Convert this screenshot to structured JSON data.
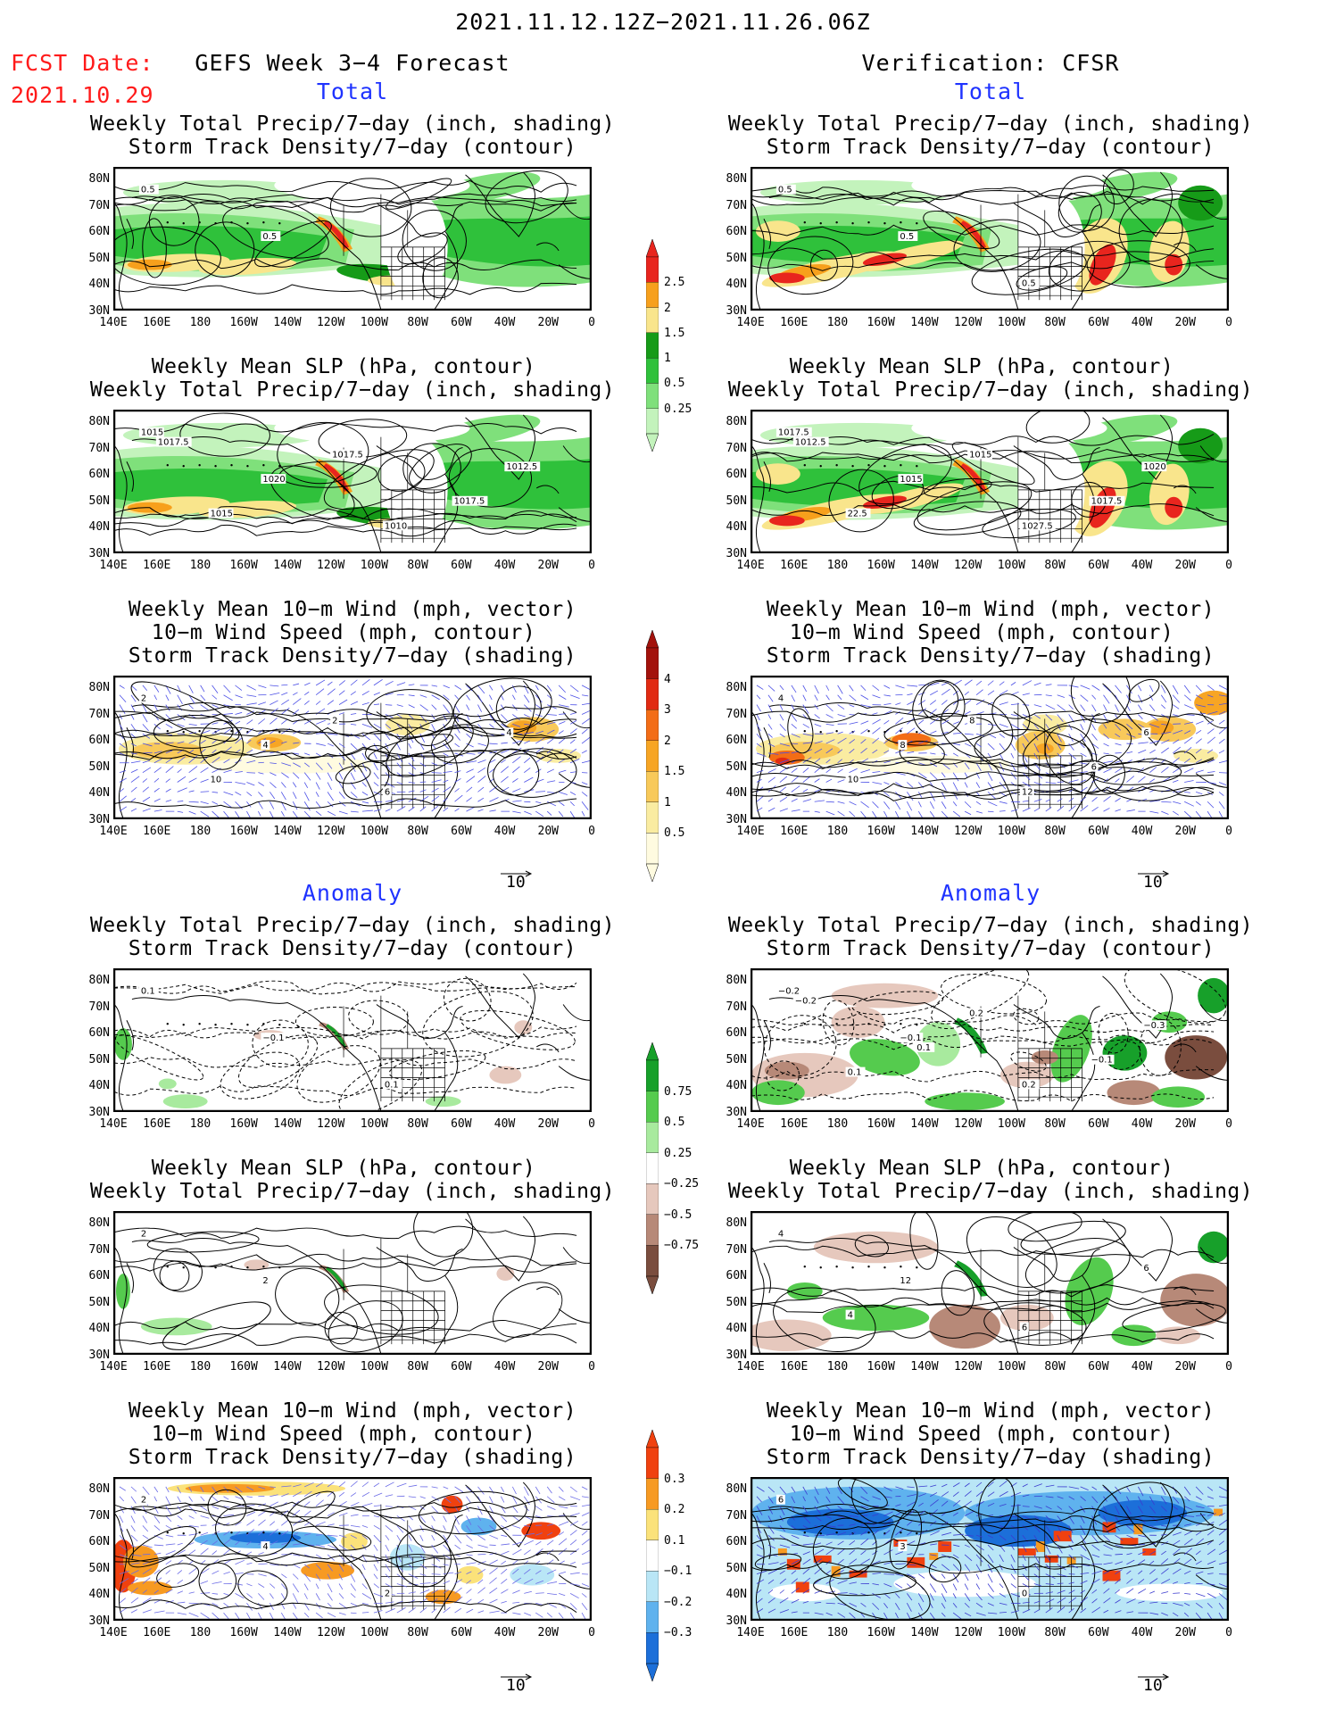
{
  "header": {
    "period": "2021.11.12.12Z−2021.11.26.06Z",
    "fcst_label": "FCST Date:",
    "fcst_date": "2021.10.29",
    "left_title": "GEFS Week 3−4 Forecast",
    "right_title": "Verification: CFSR"
  },
  "sections": {
    "total": "Total",
    "anomaly": "Anomaly"
  },
  "titles": {
    "precip_storm": [
      "Weekly Total Precip/7−day (inch, shading)",
      "Storm Track Density/7−day (contour)"
    ],
    "slp_precip": [
      "Weekly Mean SLP (hPa, contour)",
      "Weekly Total Precip/7−day (inch, shading)"
    ],
    "wind_storm": [
      "Weekly Mean 10−m Wind (mph, vector)",
      "10−m Wind Speed (mph, contour)",
      "Storm Track Density/7−day (shading)"
    ]
  },
  "axes": {
    "lat": [
      "80N",
      "70N",
      "60N",
      "50N",
      "40N",
      "30N"
    ],
    "lon": [
      "140E",
      "160E",
      "180",
      "160W",
      "140W",
      "120W",
      "100W",
      "80W",
      "60W",
      "40W",
      "20W",
      "0"
    ]
  },
  "vector_scale": "10",
  "colorbars": {
    "precip_total": {
      "labels": [
        "2.5",
        "2",
        "1.5",
        "1",
        "0.5",
        "0.25"
      ],
      "colors": [
        "#e8251e",
        "#f7a01c",
        "#f9e58c",
        "#169b18",
        "#2fc13b",
        "#7fe07b",
        "#c3f3bc"
      ]
    },
    "storm_total": {
      "labels": [
        "4",
        "3",
        "2",
        "1.5",
        "1",
        "0.5"
      ],
      "colors": [
        "#a3120c",
        "#e12a12",
        "#f36d16",
        "#f7a524",
        "#f8c95a",
        "#faeca1",
        "#fffbe0"
      ]
    },
    "precip_anom": {
      "labels": [
        "0.75",
        "0.5",
        "0.25",
        "−0.25",
        "−0.5",
        "−0.75"
      ],
      "colors": [
        "#17a02a",
        "#55cb4e",
        "#a8ea9e",
        "#ffffff",
        "#e6c8bd",
        "#b78978",
        "#7a4d3e"
      ]
    },
    "storm_anom": {
      "labels": [
        "0.3",
        "0.2",
        "0.1",
        "−0.1",
        "−0.2",
        "−0.3"
      ],
      "colors": [
        "#f0410f",
        "#f79a22",
        "#fbe27a",
        "#ffffff",
        "#b9e6f6",
        "#5fb2ee",
        "#1c6fd9"
      ]
    }
  },
  "contour_labels": {
    "p1": [
      "0.5",
      "0.5"
    ],
    "p2": [
      "0.5",
      "0.5",
      "0.5"
    ],
    "p3": [
      "1015",
      "1020",
      "1010",
      "1012.5",
      "1015",
      "1017.5",
      "1017.5",
      "1017.5"
    ],
    "p4": [
      "1017.5",
      "1015",
      "1027.5",
      "1020",
      "22.5",
      "1015",
      "1017.5",
      "1012.5"
    ],
    "p5": [
      "2",
      "4",
      "6",
      "4",
      "10",
      "2"
    ],
    "p6": [
      "4",
      "8",
      "12",
      "6",
      "10",
      "8",
      "6"
    ],
    "p7": [
      "0.1",
      "−0.1",
      "0.1"
    ],
    "p8": [
      "−0.2",
      "−0.1",
      "0.2",
      "−0.3",
      "0.1",
      "0.2",
      "−0.1",
      "−0.2",
      "0.1"
    ],
    "p9": [
      "2",
      "2"
    ],
    "p10": [
      "4",
      "12",
      "6",
      "6",
      "4"
    ],
    "p11": [
      "2",
      "4",
      "2"
    ],
    "p12": [
      "6",
      "3",
      "0"
    ]
  }
}
